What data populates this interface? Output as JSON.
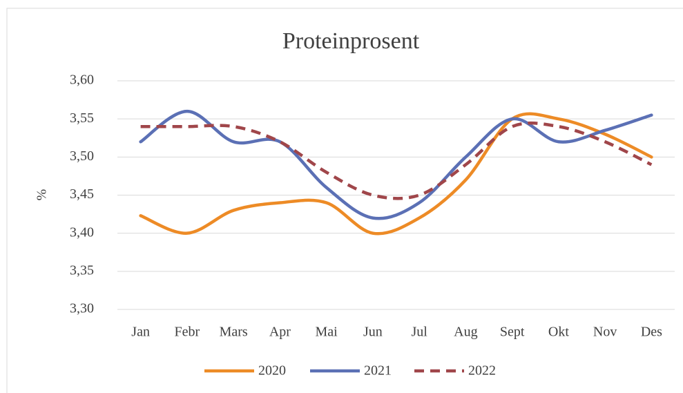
{
  "chart_data": {
    "type": "line",
    "title": "Proteinprosent",
    "y_label": "%",
    "categories": [
      "Jan",
      "Febr",
      "Mars",
      "Apr",
      "Mai",
      "Jun",
      "Jul",
      "Aug",
      "Sept",
      "Okt",
      "Nov",
      "Des"
    ],
    "series": [
      {
        "name": "2020",
        "color": "#ed8b26",
        "dash": false,
        "values": [
          3.423,
          3.4,
          3.43,
          3.44,
          3.44,
          3.4,
          3.42,
          3.47,
          3.55,
          3.55,
          3.53,
          3.5
        ]
      },
      {
        "name": "2021",
        "color": "#5b70b5",
        "dash": false,
        "values": [
          3.52,
          3.56,
          3.52,
          3.52,
          3.46,
          3.42,
          3.44,
          3.5,
          3.55,
          3.52,
          3.535,
          3.555
        ]
      },
      {
        "name": "2022",
        "color": "#a0464a",
        "dash": true,
        "values": [
          3.54,
          3.54,
          3.54,
          3.52,
          3.48,
          3.45,
          3.45,
          3.49,
          3.54,
          3.54,
          3.52,
          3.49
        ]
      }
    ],
    "ylim": [
      3.3,
      3.6
    ],
    "yticks": [
      {
        "value": 3.3,
        "label": "3,30"
      },
      {
        "value": 3.35,
        "label": "3,35"
      },
      {
        "value": 3.4,
        "label": "3,40"
      },
      {
        "value": 3.45,
        "label": "3,45"
      },
      {
        "value": 3.5,
        "label": "3,50"
      },
      {
        "value": 3.55,
        "label": "3,55"
      },
      {
        "value": 3.6,
        "label": "3,60"
      }
    ],
    "grid": true,
    "legend": "bottom",
    "smooth": true
  }
}
